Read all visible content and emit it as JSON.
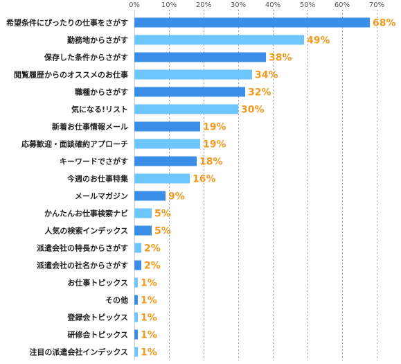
{
  "chart_data": {
    "type": "bar",
    "orientation": "horizontal",
    "title": "",
    "xlabel": "",
    "ylabel": "",
    "xlim": [
      0,
      70
    ],
    "x_ticks": [
      "0%",
      "10%",
      "20%",
      "30%",
      "40%",
      "50%",
      "60%",
      "70%"
    ],
    "grid": true,
    "value_suffix": "%",
    "colors": {
      "dark": "#3a8ee8",
      "light": "#6cc6fb",
      "label": "#f39a1e"
    },
    "categories": [
      "希望条件にぴったりの仕事をさがす",
      "勤務地からさがす",
      "保存した条件からさがす",
      "閲覧履歴からのオススメのお仕事",
      "職種からさがす",
      "気になる!リスト",
      "新着お仕事情報メール",
      "応募歓迎・面談確約アプローチ",
      "キーワードでさがす",
      "今週のお仕事特集",
      "メールマガジン",
      "かんたんお仕事検索ナビ",
      "人気の検索インデックス",
      "派遣会社の特長からさがす",
      "派遣会社の社名からさがす",
      "お仕事トピックス",
      "その他",
      "登録会トピックス",
      "研修会トピックス",
      "注目の派遣会社インデックス"
    ],
    "values": [
      68,
      49,
      38,
      34,
      32,
      30,
      19,
      19,
      18,
      16,
      9,
      5,
      5,
      2,
      2,
      1,
      1,
      1,
      1,
      1
    ],
    "value_labels": [
      "68%",
      "49%",
      "38%",
      "34%",
      "32%",
      "30%",
      "19%",
      "19%",
      "18%",
      "16%",
      "9%",
      "5%",
      "5%",
      "2%",
      "2%",
      "1%",
      "1%",
      "1%",
      "1%",
      "1%"
    ]
  }
}
